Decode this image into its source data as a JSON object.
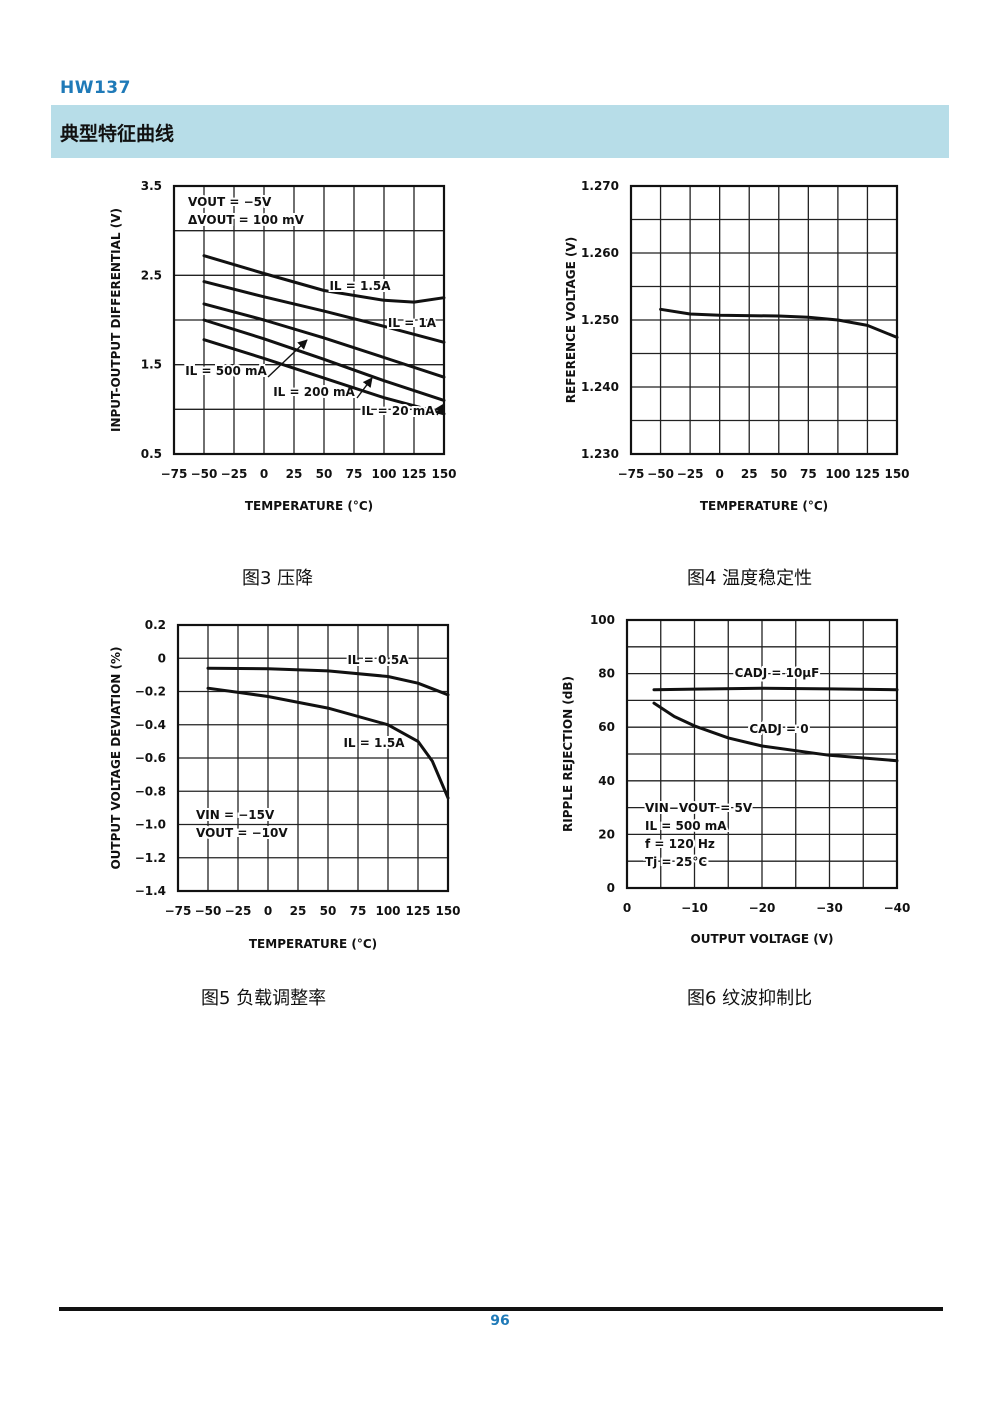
{
  "header": {
    "doc_id": "HW137",
    "section_title": "典型特征曲线"
  },
  "captions": {
    "fig3": "图3  压降",
    "fig4": "图4  温度稳定性",
    "fig5": "图5  负载调整率",
    "fig6": "图6  纹波抑制比"
  },
  "footer": {
    "page_number": "96"
  },
  "chart_data": [
    {
      "id": "fig3",
      "type": "line",
      "title": "",
      "xlabel": "TEMPERATURE (°C)",
      "ylabel": "INPUT-OUTPUT DIFFERENTIAL (V)",
      "xlim": [
        -75,
        150
      ],
      "ylim": [
        0.5,
        3.5
      ],
      "x_ticks": [
        -75,
        -50,
        -25,
        0,
        25,
        50,
        75,
        100,
        125,
        150
      ],
      "x_tick_labels": [
        "−75",
        "−50",
        "−25",
        "0",
        "25",
        "50",
        "75",
        "100",
        "125",
        "150"
      ],
      "y_ticks": [
        0.5,
        1.5,
        2.5,
        3.5
      ],
      "y_tick_labels": [
        "0.5",
        "1.5",
        "2.5",
        "3.5"
      ],
      "grid_x": [
        -75,
        -50,
        -25,
        0,
        25,
        50,
        75,
        100,
        125,
        150
      ],
      "grid_y": [
        0.5,
        1.0,
        1.5,
        2.0,
        2.5,
        3.0,
        3.5
      ],
      "grid": true,
      "annotations": [
        "VOUT = −5V",
        "ΔVOUT = 100 mV"
      ],
      "series": [
        {
          "name": "IL = 1.5A",
          "x": [
            -50,
            0,
            50,
            100,
            125,
            150
          ],
          "y": [
            2.72,
            2.52,
            2.33,
            2.22,
            2.2,
            2.25
          ]
        },
        {
          "name": "IL = 1A",
          "x": [
            -50,
            0,
            50,
            100,
            150
          ],
          "y": [
            2.43,
            2.26,
            2.1,
            1.93,
            1.75
          ]
        },
        {
          "name": "IL = 500 mA",
          "x": [
            -50,
            0,
            50,
            100,
            150
          ],
          "y": [
            2.18,
            2.0,
            1.8,
            1.58,
            1.36
          ]
        },
        {
          "name": "IL = 200 mA",
          "x": [
            -50,
            0,
            50,
            100,
            150
          ],
          "y": [
            2.0,
            1.79,
            1.56,
            1.32,
            1.1
          ]
        },
        {
          "name": "IL = 20 mA",
          "x": [
            -50,
            0,
            50,
            100,
            150
          ],
          "y": [
            1.78,
            1.57,
            1.35,
            1.13,
            0.95
          ]
        }
      ]
    },
    {
      "id": "fig4",
      "type": "line",
      "title": "",
      "xlabel": "TEMPERATURE (°C)",
      "ylabel": "REFERENCE VOLTAGE (V)",
      "xlim": [
        -75,
        150
      ],
      "ylim": [
        1.23,
        1.27
      ],
      "x_ticks": [
        -75,
        -50,
        -25,
        0,
        25,
        50,
        75,
        100,
        125,
        150
      ],
      "x_tick_labels": [
        "−75",
        "−50",
        "−25",
        "0",
        "25",
        "50",
        "75",
        "100",
        "125",
        "150"
      ],
      "y_ticks": [
        1.23,
        1.24,
        1.25,
        1.26,
        1.27
      ],
      "y_tick_labels": [
        "1.230",
        "1.240",
        "1.250",
        "1.260",
        "1.270"
      ],
      "grid_x": [
        -75,
        -50,
        -25,
        0,
        25,
        50,
        75,
        100,
        125,
        150
      ],
      "grid_y": [
        1.23,
        1.235,
        1.24,
        1.245,
        1.25,
        1.255,
        1.26,
        1.265,
        1.27
      ],
      "grid": true,
      "annotations": [],
      "series": [
        {
          "x": [
            -50,
            -25,
            0,
            50,
            75,
            100,
            125,
            150
          ],
          "y": [
            1.2516,
            1.2509,
            1.2507,
            1.2506,
            1.2504,
            1.25,
            1.2492,
            1.2474
          ]
        }
      ]
    },
    {
      "id": "fig5",
      "type": "line",
      "title": "",
      "xlabel": "TEMPERATURE (°C)",
      "ylabel": "OUTPUT VOLTAGE DEVIATION (%)",
      "xlim": [
        -75,
        150
      ],
      "ylim": [
        -1.4,
        0.2
      ],
      "x_ticks": [
        -75,
        -50,
        -25,
        0,
        25,
        50,
        75,
        100,
        125,
        150
      ],
      "x_tick_labels": [
        "−75",
        "−50",
        "−25",
        "0",
        "25",
        "50",
        "75",
        "100",
        "125",
        "150"
      ],
      "y_ticks": [
        0.2,
        0,
        -0.2,
        -0.4,
        -0.6,
        -0.8,
        -1.0,
        -1.2,
        -1.4
      ],
      "y_tick_labels": [
        "0.2",
        "0",
        "−0.2",
        "−0.4",
        "−0.6",
        "−0.8",
        "−1.0",
        "−1.2",
        "−1.4"
      ],
      "grid_x": [
        -75,
        -50,
        -25,
        0,
        25,
        50,
        75,
        100,
        125,
        150
      ],
      "grid_y": [
        0.2,
        0,
        -0.2,
        -0.4,
        -0.6,
        -0.8,
        -1.0,
        -1.2,
        -1.4
      ],
      "grid": true,
      "annotations": [
        "VIN = −15V",
        "VOUT = −10V"
      ],
      "series": [
        {
          "name": "IL = 0.5A",
          "x": [
            -50,
            0,
            50,
            100,
            125,
            150
          ],
          "y": [
            -0.06,
            -0.063,
            -0.076,
            -0.11,
            -0.15,
            -0.22
          ]
        },
        {
          "name": "IL = 1.5A",
          "x": [
            -50,
            0,
            50,
            100,
            125,
            137,
            150
          ],
          "y": [
            -0.18,
            -0.23,
            -0.3,
            -0.4,
            -0.5,
            -0.62,
            -0.84
          ]
        }
      ]
    },
    {
      "id": "fig6",
      "type": "line",
      "title": "",
      "xlabel": "OUTPUT VOLTAGE (V)",
      "ylabel": "RIPPLE REJECTION (dB)",
      "xlim": [
        0,
        -40
      ],
      "ylim": [
        0,
        100
      ],
      "x_ticks": [
        0,
        -10,
        -20,
        -30,
        -40
      ],
      "x_tick_labels": [
        "0",
        "−10",
        "−20",
        "−30",
        "−40"
      ],
      "y_ticks": [
        0,
        20,
        40,
        60,
        80,
        100
      ],
      "y_tick_labels": [
        "0",
        "20",
        "40",
        "60",
        "80",
        "100"
      ],
      "grid_x": [
        0,
        -5,
        -10,
        -15,
        -20,
        -25,
        -30,
        -35,
        -40
      ],
      "grid_y": [
        0,
        10,
        20,
        30,
        40,
        50,
        60,
        70,
        80,
        90,
        100
      ],
      "grid": true,
      "annotations": [
        "VIN−VOUT = 5V",
        "IL = 500 mA",
        "f = 120 Hz",
        "Tj = 25°C"
      ],
      "series": [
        {
          "name": "CADJ = 10μF",
          "x": [
            -4,
            -10,
            -20,
            -30,
            -40
          ],
          "y": [
            74,
            74.2,
            74.5,
            74.3,
            74
          ]
        },
        {
          "name": "CADJ = 0",
          "x": [
            -4,
            -7,
            -10,
            -15,
            -20,
            -30,
            -40
          ],
          "y": [
            69,
            64,
            60.5,
            56,
            53,
            49.5,
            47.5
          ]
        }
      ]
    }
  ]
}
